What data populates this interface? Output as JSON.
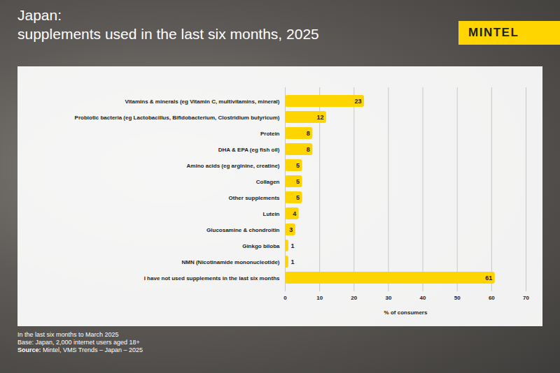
{
  "chart_data": {
    "type": "bar",
    "orientation": "horizontal",
    "title": "Japan:",
    "subtitle": "supplements used in the last six months, 2025",
    "categories": [
      "Vitamins & minerals (eg Vitamin C, multivitamins, mineral)",
      "Probiotic bacteria (eg Lactobacillus, Bifidobacterium, Clostridium butyricum)",
      "Protein",
      "DHA & EPA (eg fish oil)",
      "Amino acids (eg arginine, creatine)",
      "Collagen",
      "Other supplements",
      "Lutein",
      "Glucosamine & chondroitin",
      "Ginkgo biloba",
      "NMN (Nicotinamide mononucleotide)",
      "I have not used supplements in the last six months"
    ],
    "values": [
      23,
      12,
      8,
      8,
      5,
      5,
      5,
      4,
      3,
      1,
      1,
      61
    ],
    "color": "#ffd500",
    "xlim": [
      0,
      70
    ],
    "xticks": [
      0,
      10,
      20,
      30,
      40,
      50,
      60,
      70
    ],
    "xlabel": "% of consumers",
    "grid": true,
    "data_labels": true
  },
  "brand": "MINTEL",
  "notes": [
    "In the last six months to March 2025",
    "Base: Japan, 2,000 internet users aged 18+"
  ],
  "source": {
    "label": "Source:",
    "text": "Mintel, VMS Trends – Japan – 2025"
  }
}
